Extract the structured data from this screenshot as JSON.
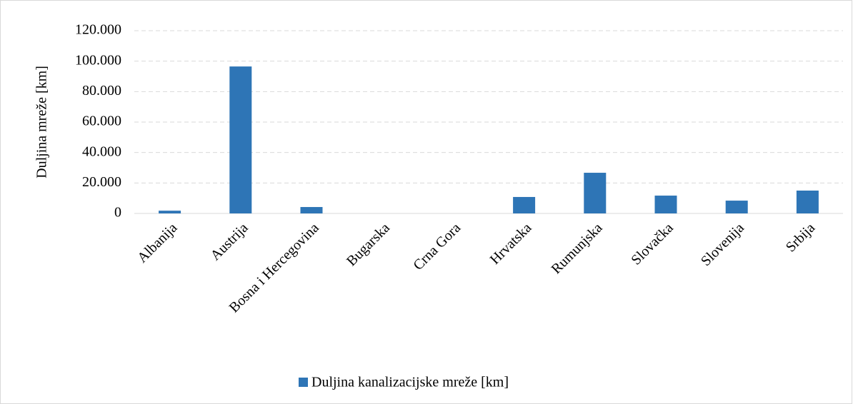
{
  "chart_data": {
    "type": "bar",
    "y_label": "Duljina mreže [km]",
    "categories": [
      "Albanija",
      "Austrija",
      "Bosna i Hercegovina",
      "Bugarska",
      "Crna Gora",
      "Hrvatska",
      "Rumunjska",
      "Slovačka",
      "Slovenija",
      "Srbija"
    ],
    "series": [
      {
        "name": "Duljina kanalizacijske mreže [km]",
        "color": "#2e75b6",
        "values": [
          1800,
          96500,
          4200,
          0,
          0,
          10800,
          26700,
          11700,
          8400,
          15000
        ]
      }
    ],
    "ylim": [
      0,
      120000
    ],
    "yticks": [
      0,
      {
        "value": 20000,
        "label": "20.000"
      },
      {
        "value": 40000,
        "label": "40.000"
      },
      {
        "value": 60000,
        "label": "60.000"
      },
      {
        "value": 80000,
        "label": "80.000"
      },
      {
        "value": 100000,
        "label": "100.000"
      },
      {
        "value": 120000,
        "label": "120.000"
      }
    ],
    "grid": true,
    "legend": "bottom"
  }
}
